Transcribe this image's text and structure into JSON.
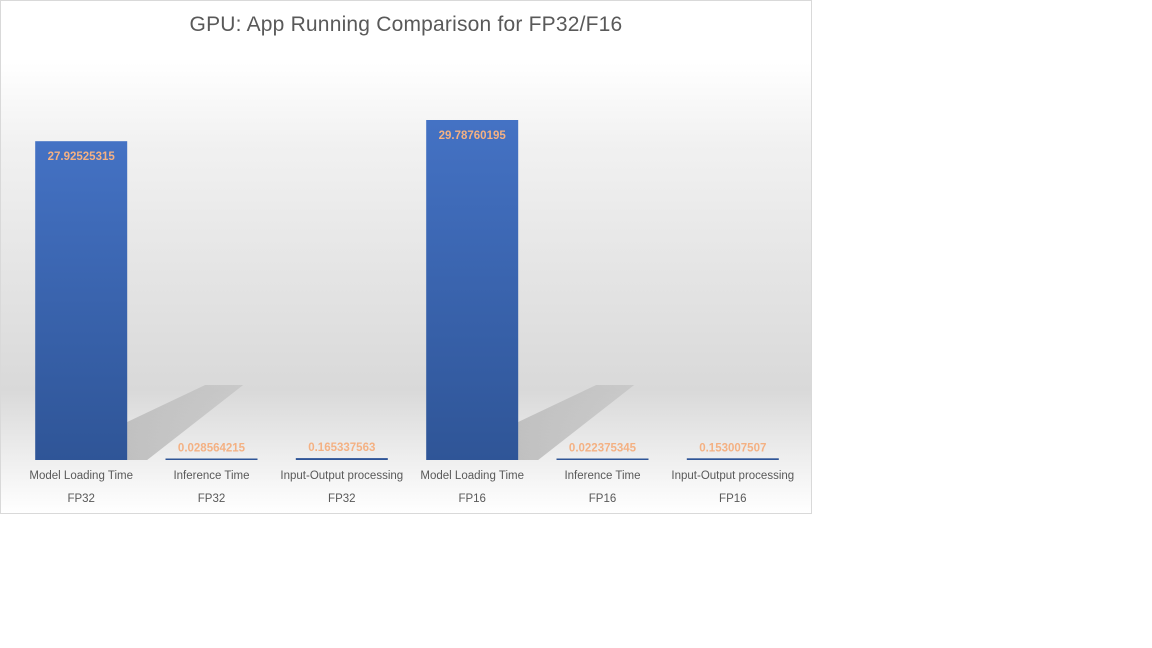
{
  "chart_data": {
    "type": "bar",
    "title": "GPU: App Running Comparison for FP32/F16",
    "categories": [
      {
        "label": "Model Loading Time",
        "group": "FP32"
      },
      {
        "label": "Inference Time",
        "group": "FP32"
      },
      {
        "label": "Input-Output processing",
        "group": "FP32"
      },
      {
        "label": "Model Loading Time",
        "group": "FP16"
      },
      {
        "label": "Inference Time",
        "group": "FP16"
      },
      {
        "label": "Input-Output processing",
        "group": "FP16"
      }
    ],
    "values": [
      27.92525315,
      0.028564215,
      0.165337563,
      29.78760195,
      0.022375345,
      0.153007507
    ],
    "data_labels": [
      "27.92525315",
      "0.028564215",
      "0.165337563",
      "29.78760195",
      "0.022375345",
      "0.153007507"
    ],
    "ylim": [
      0,
      31.8
    ],
    "grid": false,
    "legend": "none",
    "colors": {
      "bar_top": "#4472c4",
      "bar_bottom": "#2f5597",
      "data_label": "#f4b183",
      "data_label_small": "#f4b183",
      "axis_text": "#595959",
      "shadow": "#9a9a9a"
    }
  }
}
